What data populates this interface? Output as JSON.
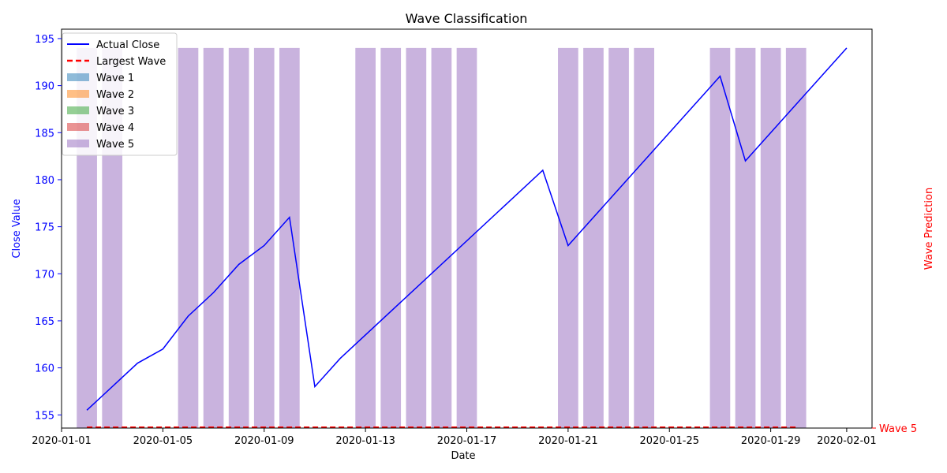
{
  "chart_data": {
    "type": "line",
    "title": "Wave Classification",
    "xlabel": "Date",
    "ylabel": "Close Value",
    "y2label": "Wave Prediction",
    "ylim": [
      153.6,
      196.0
    ],
    "xlim": [
      "2020-01-01",
      "2020-02-02"
    ],
    "x_ticks": [
      "2020-01-01",
      "2020-01-05",
      "2020-01-09",
      "2020-01-13",
      "2020-01-17",
      "2020-01-21",
      "2020-01-25",
      "2020-01-29",
      "2020-02-01"
    ],
    "y_ticks": [
      155,
      160,
      165,
      170,
      175,
      180,
      185,
      190,
      195
    ],
    "y2_tick_label": "Wave 5",
    "grid": false,
    "legend_position": "upper-left",
    "series": [
      {
        "name": "Actual Close",
        "color": "#0000ff",
        "points": [
          [
            "2020-01-02",
            155.5
          ],
          [
            "2020-01-04",
            160.5
          ],
          [
            "2020-01-05",
            162.0
          ],
          [
            "2020-01-06",
            165.5
          ],
          [
            "2020-01-07",
            168.0
          ],
          [
            "2020-01-08",
            171.0
          ],
          [
            "2020-01-09",
            173.0
          ],
          [
            "2020-01-10",
            176.0
          ],
          [
            "2020-01-11",
            158.0
          ],
          [
            "2020-01-12",
            161.0
          ],
          [
            "2020-01-20",
            181.0
          ],
          [
            "2020-01-21",
            173.0
          ],
          [
            "2020-01-27",
            191.0
          ],
          [
            "2020-01-28",
            182.0
          ],
          [
            "2020-02-01",
            194.0
          ]
        ]
      },
      {
        "name": "Largest Wave",
        "color": "#ff0000",
        "style": "dashed",
        "range": [
          "2020-01-02",
          "2020-01-30"
        ],
        "value": "Wave 5"
      }
    ],
    "bar_series": [
      {
        "name": "Wave 1",
        "color": "#1f77b4",
        "dates": []
      },
      {
        "name": "Wave 2",
        "color": "#ff7f0e",
        "dates": []
      },
      {
        "name": "Wave 3",
        "color": "#2ca02c",
        "dates": []
      },
      {
        "name": "Wave 4",
        "color": "#d62728",
        "dates": []
      },
      {
        "name": "Wave 5",
        "color": "#9467bd",
        "value": 194.0,
        "dates": [
          "2020-01-02",
          "2020-01-03",
          "2020-01-06",
          "2020-01-07",
          "2020-01-08",
          "2020-01-09",
          "2020-01-10",
          "2020-01-13",
          "2020-01-14",
          "2020-01-15",
          "2020-01-16",
          "2020-01-17",
          "2020-01-21",
          "2020-01-22",
          "2020-01-23",
          "2020-01-24",
          "2020-01-27",
          "2020-01-28",
          "2020-01-29",
          "2020-01-30"
        ]
      }
    ],
    "legend": [
      "Actual Close",
      "Largest Wave",
      "Wave 1",
      "Wave 2",
      "Wave 3",
      "Wave 4",
      "Wave 5"
    ]
  }
}
